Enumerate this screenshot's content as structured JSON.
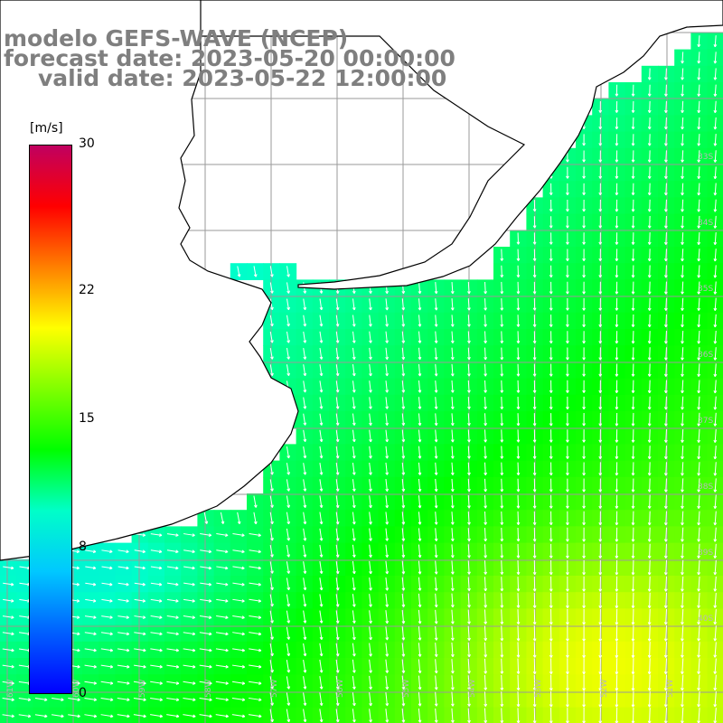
{
  "title": {
    "line1": "modelo GEFS-WAVE (NCEP)",
    "line2": "forecast date: 2023-05-20 00:00:00",
    "line3": "valid date: 2023-05-22 12:00:00"
  },
  "colorbar": {
    "unit": "[m/s]",
    "min": 0,
    "max": 30,
    "ticks": [
      {
        "value": 30,
        "label": "30"
      },
      {
        "value": 22,
        "label": "22"
      },
      {
        "value": 15,
        "label": "15"
      },
      {
        "value": 8,
        "label": "8"
      },
      {
        "value": 0,
        "label": "0"
      }
    ],
    "colors": [
      "#0000ff",
      "#0060ff",
      "#00c8ff",
      "#00ffc8",
      "#00ff00",
      "#80ff00",
      "#ffff00",
      "#ff8000",
      "#ff0000",
      "#c00060"
    ]
  },
  "map": {
    "variable": "wind speed",
    "land_color": "#ffffff",
    "coast_color": "#000000",
    "grid_color": "#9a9a9a",
    "lat_labels": [
      "33S",
      "34S",
      "35S",
      "36S",
      "37S",
      "38S",
      "39S",
      "40S"
    ],
    "lon_labels": [
      "61W",
      "60W",
      "59W",
      "58W",
      "57W",
      "56W",
      "55W",
      "54W",
      "53W",
      "52W",
      "51W"
    ]
  }
}
